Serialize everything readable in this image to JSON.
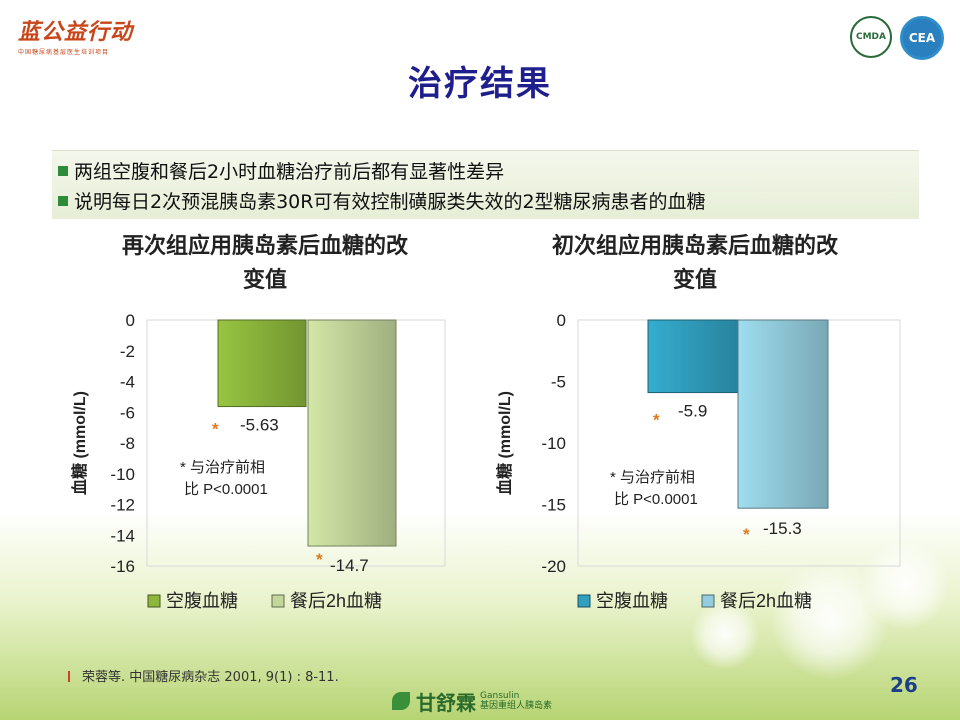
{
  "header": {
    "logo_text": "蓝公益行动",
    "logo_subtext": "中国糖尿病基层医生培训项目",
    "badge1": "CMDA",
    "badge2": "CEA"
  },
  "slide_title": "治疗结果",
  "bullets": [
    "两组空腹和餐后2小时血糖治疗前后都有显著性差异",
    "说明每日2次预混胰岛素30R可有效控制磺脲类失效的2型糖尿病患者的血糖"
  ],
  "chart_data": [
    {
      "type": "bar",
      "title_lines": [
        "再次组应用胰岛素后血糖的改",
        "变值"
      ],
      "ylabel": "血糖 (mmol/L)",
      "ylim": [
        -16,
        0
      ],
      "yticks": [
        0,
        -2,
        -4,
        -6,
        -8,
        -10,
        -12,
        -14,
        -16
      ],
      "series": [
        {
          "name": "空腹血糖",
          "value": -5.63,
          "label": "-5.63",
          "color": "#8cb63c"
        },
        {
          "name": "餐后2h血糖",
          "value": -14.7,
          "label": "-14.7",
          "color": "#c3d69b"
        }
      ],
      "annotation_lines": [
        "* 与治疗前相",
        "比 P<0.0001"
      ],
      "significance_marker": "*",
      "legend_position": "bottom"
    },
    {
      "type": "bar",
      "title_lines": [
        "初次组应用胰岛素后血糖的改",
        "变值"
      ],
      "ylabel": "血糖 (mmol/L)",
      "ylim": [
        -20,
        0
      ],
      "yticks": [
        0,
        -5,
        -10,
        -15,
        -20
      ],
      "series": [
        {
          "name": "空腹血糖",
          "value": -5.9,
          "label": "-5.9",
          "color": "#31a0c0"
        },
        {
          "name": "餐后2h血糖",
          "value": -15.3,
          "label": "-15.3",
          "color": "#93cddd"
        }
      ],
      "annotation_lines": [
        "* 与治疗前相",
        "比 P<0.0001"
      ],
      "significance_marker": "*",
      "legend_position": "bottom"
    }
  ],
  "citation": "荣蓉等. 中国糖尿病杂志 2001, 9(1) : 8-11.",
  "page_number": "26",
  "brand": {
    "name_cn": "甘舒霖",
    "name_en": "Gansulin",
    "tagline": "基因重组人胰岛素"
  }
}
